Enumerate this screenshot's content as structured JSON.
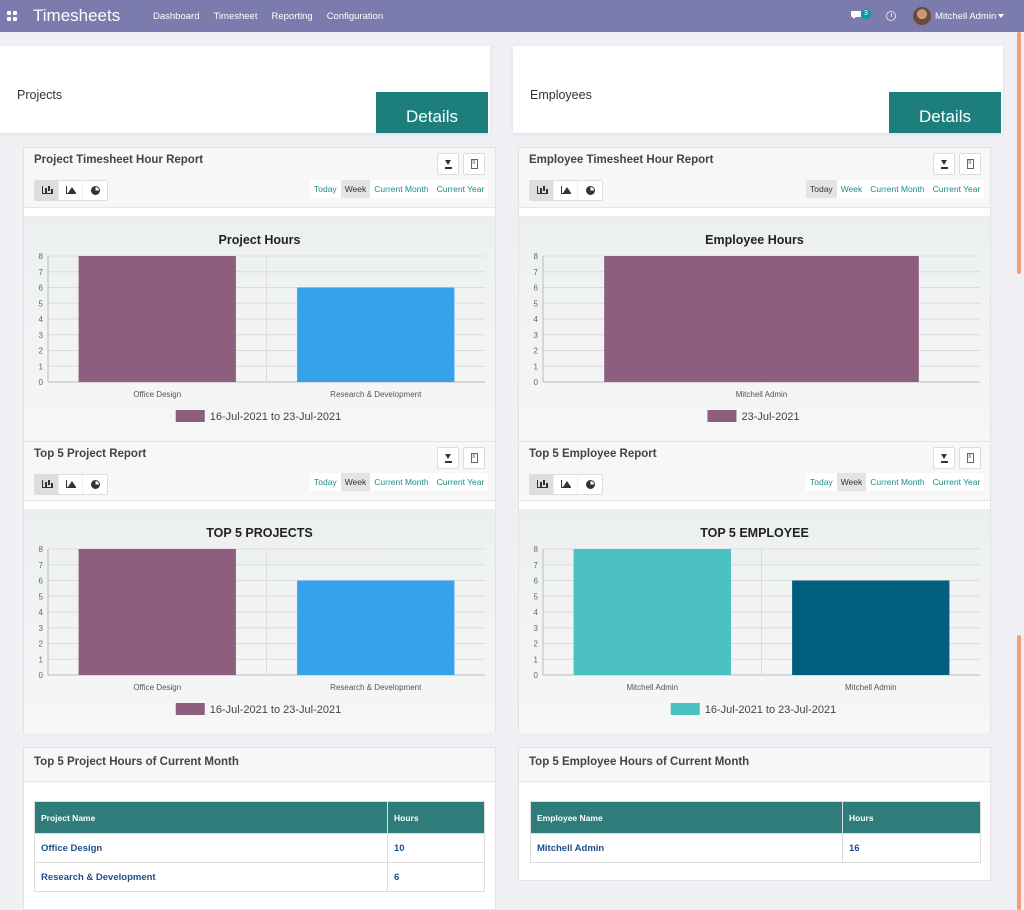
{
  "topbar": {
    "app_title": "Timesheets",
    "menu": [
      "Dashboard",
      "Timesheet",
      "Reporting",
      "Configuration"
    ],
    "chat_count": "3",
    "user_name": "Mitchell Admin",
    "icons": [
      "apps-grid-icon",
      "chat-icon",
      "clock-icon",
      "avatar"
    ]
  },
  "tiles": {
    "projects": {
      "label": "Projects",
      "button": "Details"
    },
    "employees": {
      "label": "Employees",
      "button": "Details"
    }
  },
  "periods": [
    "Today",
    "Week",
    "Current Month",
    "Current Year"
  ],
  "colors": {
    "accent": "#1c7f7c",
    "bar_purple": "#8e5e7e",
    "bar_blue": "#36a2eb",
    "bar_teal": "#4bc0c0",
    "bar_navy": "#005f7f"
  },
  "charts": {
    "project_hours": {
      "card_title": "Project Timesheet Hour Report",
      "active_period": "Week",
      "active_chart_type": "bar"
    },
    "employee_hours": {
      "card_title": "Employee Timesheet Hour Report",
      "active_period": "Today",
      "active_chart_type": "bar"
    },
    "top5_projects": {
      "card_title": "Top 5 Project Report",
      "active_period": "Week",
      "active_chart_type": "bar"
    },
    "top5_employees": {
      "card_title": "Top 5 Employee Report",
      "active_period": "Week",
      "active_chart_type": "bar"
    }
  },
  "chart_data": [
    {
      "id": "project_hours",
      "type": "bar",
      "title": "Project Hours",
      "categories": [
        "Office Design",
        "Research & Development"
      ],
      "values": [
        8,
        6
      ],
      "bar_colors": [
        "#8e5e7e",
        "#36a2eb"
      ],
      "legend": "16-Jul-2021 to 23-Jul-2021",
      "legend_color": "#8e5e7e",
      "ylim": [
        0,
        8
      ],
      "yticks": [
        0,
        1,
        2,
        3,
        4,
        5,
        6,
        7,
        8
      ],
      "grid": true
    },
    {
      "id": "employee_hours",
      "type": "bar",
      "title": "Employee Hours",
      "categories": [
        "Mitchell Admin"
      ],
      "values": [
        8
      ],
      "bar_colors": [
        "#8e5e7e"
      ],
      "legend": "23-Jul-2021",
      "legend_color": "#8e5e7e",
      "ylim": [
        0,
        8
      ],
      "yticks": [
        0,
        1,
        2,
        3,
        4,
        5,
        6,
        7,
        8
      ],
      "grid": true
    },
    {
      "id": "top5_projects",
      "type": "bar",
      "title": "TOP 5 PROJECTS",
      "categories": [
        "Office Design",
        "Research & Development"
      ],
      "values": [
        8,
        6
      ],
      "bar_colors": [
        "#8e5e7e",
        "#36a2eb"
      ],
      "legend": "16-Jul-2021 to 23-Jul-2021",
      "legend_color": "#8e5e7e",
      "ylim": [
        0,
        8
      ],
      "yticks": [
        0,
        1,
        2,
        3,
        4,
        5,
        6,
        7,
        8
      ],
      "grid": true
    },
    {
      "id": "top5_employees",
      "type": "bar",
      "title": "TOP 5 EMPLOYEE",
      "categories": [
        "Mitchell Admin",
        "Mitchell Admin"
      ],
      "values": [
        8,
        6
      ],
      "bar_colors": [
        "#4bc0c0",
        "#005f7f"
      ],
      "legend": "16-Jul-2021 to 23-Jul-2021",
      "legend_color": "#4bc0c0",
      "ylim": [
        0,
        8
      ],
      "yticks": [
        0,
        1,
        2,
        3,
        4,
        5,
        6,
        7,
        8
      ],
      "grid": true
    }
  ],
  "tables": {
    "projects": {
      "title": "Top 5 Project Hours of Current Month",
      "headers": [
        "Project Name",
        "Hours"
      ],
      "rows": [
        [
          "Office Design",
          "10"
        ],
        [
          "Research & Development",
          "6"
        ]
      ]
    },
    "employees": {
      "title": "Top 5 Employee Hours of Current Month",
      "headers": [
        "Employee Name",
        "Hours"
      ],
      "rows": [
        [
          "Mitchell Admin",
          "16"
        ]
      ]
    }
  }
}
